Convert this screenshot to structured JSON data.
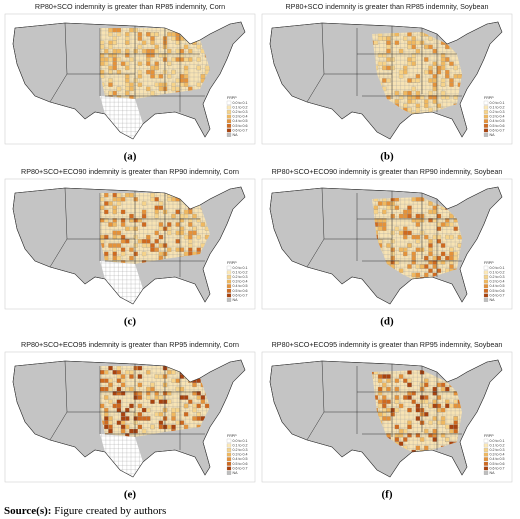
{
  "panels": [
    {
      "title": "RP80+SCO indemnity is greater than RP85 indemnity, Corn",
      "label": "(a)",
      "legend": {
        "title": "FRPP",
        "items": [
          "0.0 to 0.1",
          "0.1 to 0.2",
          "0.2 to 0.3",
          "0.3 to 0.4",
          "0.4 to 0.5",
          "0.5 to 0.6",
          "0.6 to 0.7",
          "NA"
        ]
      }
    },
    {
      "title": "RP80+SCO indemnity is greater than RP85 indemnity, Soybean",
      "label": "(b)",
      "legend": {
        "title": "FRPP",
        "items": [
          "0.0 to 0.1",
          "0.1 to 0.2",
          "0.2 to 0.3",
          "0.3 to 0.4",
          "0.4 to 0.5",
          "0.5 to 0.6",
          "0.6 to 0.7",
          "NA"
        ]
      }
    },
    {
      "title": "RP80+SCO+ECO90 indemnity is greater than RP90 indemnity, Corn",
      "label": "(c)",
      "legend": {
        "title": "FRPP",
        "items": [
          "0.0 to 0.1",
          "0.1 to 0.2",
          "0.2 to 0.3",
          "0.3 to 0.4",
          "0.4 to 0.5",
          "0.5 to 0.6",
          "0.6 to 0.7",
          "NA"
        ]
      }
    },
    {
      "title": "RP80+SCO+ECO90 indemnity is greater than RP90 indemnity, Soybean",
      "label": "(d)",
      "legend": {
        "title": "FRPP",
        "items": [
          "0.0 to 0.1",
          "0.1 to 0.2",
          "0.2 to 0.3",
          "0.3 to 0.4",
          "0.4 to 0.5",
          "0.5 to 0.6",
          "0.6 to 0.7",
          "NA"
        ]
      }
    },
    {
      "title": "RP80+SCO+ECO95 indemnity is greater than RP95 indemnity, Corn",
      "label": "(e)",
      "legend": {
        "title": "FRPP",
        "items": [
          "0.0 to 0.1",
          "0.1 to 0.2",
          "0.2 to 0.3",
          "0.3 to 0.4",
          "0.4 to 0.5",
          "0.5 to 0.6",
          "0.6 to 0.7",
          "NA"
        ]
      }
    },
    {
      "title": "RP80+SCO+ECO95 indemnity is greater than RP95 indemnity, Soybean",
      "label": "(f)",
      "legend": {
        "title": "FRPP",
        "items": [
          "0.0 to 0.1",
          "0.1 to 0.2",
          "0.2 to 0.3",
          "0.3 to 0.4",
          "0.4 to 0.5",
          "0.5 to 0.6",
          "0.6 to 0.7",
          "NA"
        ]
      }
    }
  ],
  "legend_colors": [
    "#ffffff",
    "#fbe8b8",
    "#f6d38a",
    "#efb860",
    "#e4923a",
    "#cf6a1f",
    "#a8430f",
    "#bdbdbd"
  ],
  "source": {
    "label": "Source(s):",
    "text": "Figure created by authors"
  }
}
